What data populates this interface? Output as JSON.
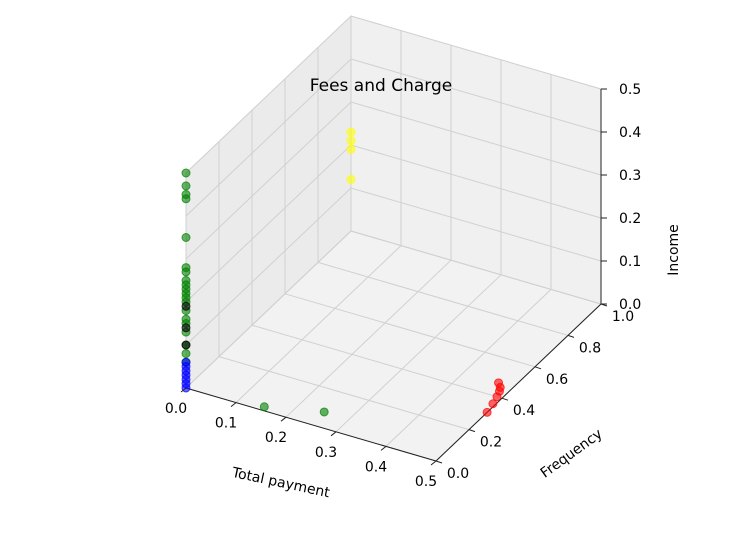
{
  "chart_data": {
    "type": "scatter",
    "projection": "3d",
    "title": "Fees and Charge",
    "xlabel": "Total payment",
    "ylabel": "Frequency",
    "zlabel": "Income",
    "xlim": [
      0,
      0.5
    ],
    "ylim": [
      0,
      1.0
    ],
    "zlim": [
      0,
      0.5
    ],
    "xticks": [
      "0.0",
      "0.1",
      "0.2",
      "0.3",
      "0.4",
      "0.5"
    ],
    "yticks": [
      "0.0",
      "0.2",
      "0.4",
      "0.6",
      "0.8",
      "1.0"
    ],
    "zticks": [
      "0.0",
      "0.1",
      "0.2",
      "0.3",
      "0.4",
      "0.5"
    ],
    "grid": true,
    "series": [
      {
        "color": "#008000",
        "points": [
          {
            "x": 0.0,
            "y": 0.0,
            "z": 0.5
          },
          {
            "x": 0.0,
            "y": 0.0,
            "z": 0.47
          },
          {
            "x": 0.0,
            "y": 0.0,
            "z": 0.45
          },
          {
            "x": 0.0,
            "y": 0.0,
            "z": 0.44
          },
          {
            "x": 0.0,
            "y": 0.0,
            "z": 0.35
          },
          {
            "x": 0.0,
            "y": 0.0,
            "z": 0.28
          },
          {
            "x": 0.0,
            "y": 0.0,
            "z": 0.27
          },
          {
            "x": 0.0,
            "y": 0.0,
            "z": 0.25
          },
          {
            "x": 0.0,
            "y": 0.0,
            "z": 0.24
          },
          {
            "x": 0.0,
            "y": 0.0,
            "z": 0.23
          },
          {
            "x": 0.0,
            "y": 0.0,
            "z": 0.22
          },
          {
            "x": 0.0,
            "y": 0.0,
            "z": 0.21
          },
          {
            "x": 0.0,
            "y": 0.0,
            "z": 0.2
          },
          {
            "x": 0.0,
            "y": 0.0,
            "z": 0.18
          },
          {
            "x": 0.0,
            "y": 0.0,
            "z": 0.16
          },
          {
            "x": 0.0,
            "y": 0.0,
            "z": 0.15
          },
          {
            "x": 0.0,
            "y": 0.0,
            "z": 0.13
          },
          {
            "x": 0.0,
            "y": 0.0,
            "z": 0.1
          },
          {
            "x": 0.0,
            "y": 0.0,
            "z": 0.08
          },
          {
            "x": 0.0,
            "y": 0.0,
            "z": 0.06
          },
          {
            "x": 0.15,
            "y": 0.02,
            "z": 0.0
          },
          {
            "x": 0.25,
            "y": 0.08,
            "z": 0.0
          }
        ]
      },
      {
        "color": "#000000",
        "points": [
          {
            "x": 0.0,
            "y": 0.0,
            "z": 0.19
          },
          {
            "x": 0.0,
            "y": 0.0,
            "z": 0.14
          },
          {
            "x": 0.0,
            "y": 0.0,
            "z": 0.1
          }
        ]
      },
      {
        "color": "#0000ff",
        "points": [
          {
            "x": 0.0,
            "y": 0.0,
            "z": 0.06
          },
          {
            "x": 0.0,
            "y": 0.0,
            "z": 0.05
          },
          {
            "x": 0.0,
            "y": 0.0,
            "z": 0.04
          },
          {
            "x": 0.0,
            "y": 0.0,
            "z": 0.03
          },
          {
            "x": 0.0,
            "y": 0.0,
            "z": 0.02
          },
          {
            "x": 0.0,
            "y": 0.0,
            "z": 0.01
          },
          {
            "x": 0.0,
            "y": 0.0,
            "z": 0.0
          }
        ]
      },
      {
        "color": "#ffff00",
        "points": [
          {
            "x": 0.0,
            "y": 1.0,
            "z": 0.23
          },
          {
            "x": 0.0,
            "y": 1.0,
            "z": 0.21
          },
          {
            "x": 0.0,
            "y": 1.0,
            "z": 0.19
          },
          {
            "x": 0.0,
            "y": 1.0,
            "z": 0.12
          }
        ]
      },
      {
        "color": "#ff0000",
        "points": [
          {
            "x": 0.47,
            "y": 0.47,
            "z": 0.0
          },
          {
            "x": 0.48,
            "y": 0.45,
            "z": 0.0
          },
          {
            "x": 0.485,
            "y": 0.43,
            "z": 0.0
          },
          {
            "x": 0.49,
            "y": 0.4,
            "z": 0.0
          },
          {
            "x": 0.495,
            "y": 0.36,
            "z": 0.0
          },
          {
            "x": 0.5,
            "y": 0.31,
            "z": 0.0
          }
        ]
      }
    ]
  }
}
